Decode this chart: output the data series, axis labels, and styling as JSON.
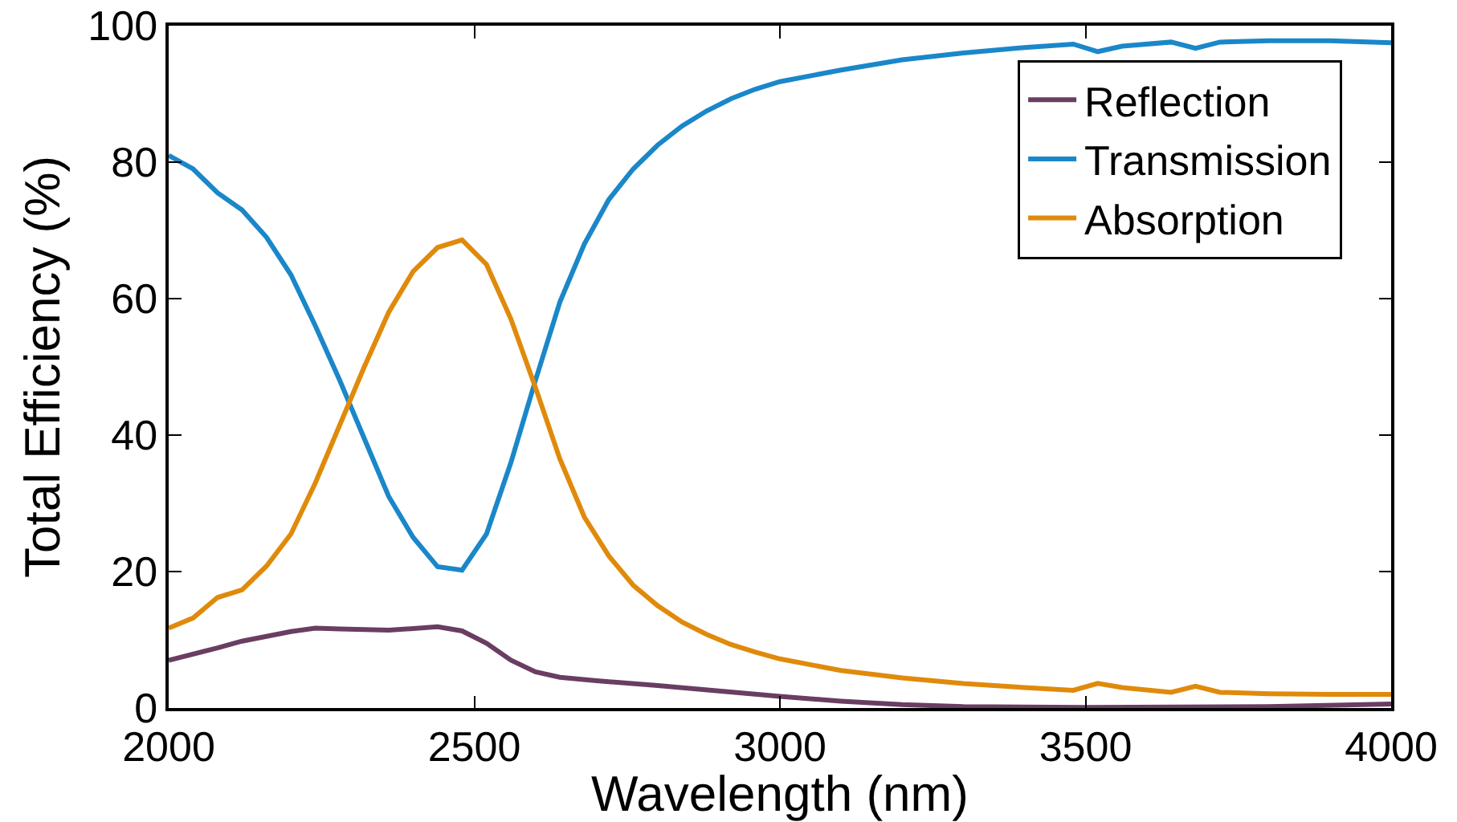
{
  "chart_data": {
    "type": "line",
    "xlabel": "Wavelength (nm)",
    "ylabel": "Total Efficiency (%)",
    "xlim": [
      2000,
      4000
    ],
    "xticks": [
      2000,
      2500,
      3000,
      3500,
      4000
    ],
    "ylim": [
      0,
      100
    ],
    "yticks": [
      0,
      20,
      40,
      60,
      80,
      100
    ],
    "grid": false,
    "legend": "top right",
    "marker": "none",
    "line_style": "solid",
    "series": [
      {
        "name": "Reflection",
        "color": "#6a3d62",
        "x": [
          2000,
          2080,
          2120,
          2160,
          2200,
          2240,
          2280,
          2360,
          2440,
          2480,
          2520,
          2560,
          2600,
          2640,
          2700,
          2800,
          2900,
          3000,
          3100,
          3200,
          3300,
          3500,
          3800,
          4000
        ],
        "values": [
          7,
          8.8,
          9.8,
          10.5,
          11.2,
          11.7,
          11.6,
          11.4,
          11.9,
          11.3,
          9.5,
          7,
          5.3,
          4.5,
          4,
          3.3,
          2.5,
          1.7,
          1,
          0.5,
          0.2,
          0.1,
          0.2,
          0.6
        ]
      },
      {
        "name": "Transmission",
        "color": "#1a87c9",
        "x": [
          2000,
          2040,
          2080,
          2120,
          2160,
          2200,
          2240,
          2280,
          2320,
          2360,
          2400,
          2440,
          2480,
          2520,
          2560,
          2600,
          2640,
          2680,
          2720,
          2760,
          2800,
          2840,
          2880,
          2920,
          2960,
          3000,
          3100,
          3200,
          3300,
          3400,
          3480,
          3520,
          3560,
          3640,
          3680,
          3720,
          3800,
          3900,
          4000
        ],
        "values": [
          81,
          79,
          75.5,
          73,
          69,
          63.5,
          56,
          48,
          39.5,
          31,
          25,
          20.7,
          20.2,
          25.5,
          36,
          48,
          59.5,
          68,
          74.5,
          79,
          82.5,
          85.3,
          87.5,
          89.3,
          90.7,
          91.8,
          93.5,
          95,
          96,
          96.8,
          97.3,
          96.2,
          97,
          97.6,
          96.7,
          97.6,
          97.8,
          97.8,
          97.5
        ]
      },
      {
        "name": "Absorption",
        "color": "#e08a0c",
        "x": [
          2000,
          2040,
          2080,
          2120,
          2160,
          2200,
          2240,
          2280,
          2320,
          2360,
          2400,
          2440,
          2480,
          2520,
          2560,
          2600,
          2640,
          2680,
          2720,
          2760,
          2800,
          2840,
          2880,
          2920,
          2960,
          3000,
          3100,
          3200,
          3300,
          3400,
          3480,
          3520,
          3560,
          3640,
          3680,
          3720,
          3800,
          3900,
          4000
        ],
        "values": [
          11.7,
          13.2,
          16.2,
          17.3,
          20.8,
          25.5,
          33,
          41.5,
          50,
          58,
          64,
          67.5,
          68.6,
          65,
          57,
          47,
          36.5,
          28,
          22.3,
          18,
          15,
          12.6,
          10.8,
          9.3,
          8.2,
          7.2,
          5.5,
          4.4,
          3.6,
          3,
          2.6,
          3.6,
          3,
          2.3,
          3.2,
          2.3,
          2.1,
          2,
          2
        ]
      }
    ]
  }
}
